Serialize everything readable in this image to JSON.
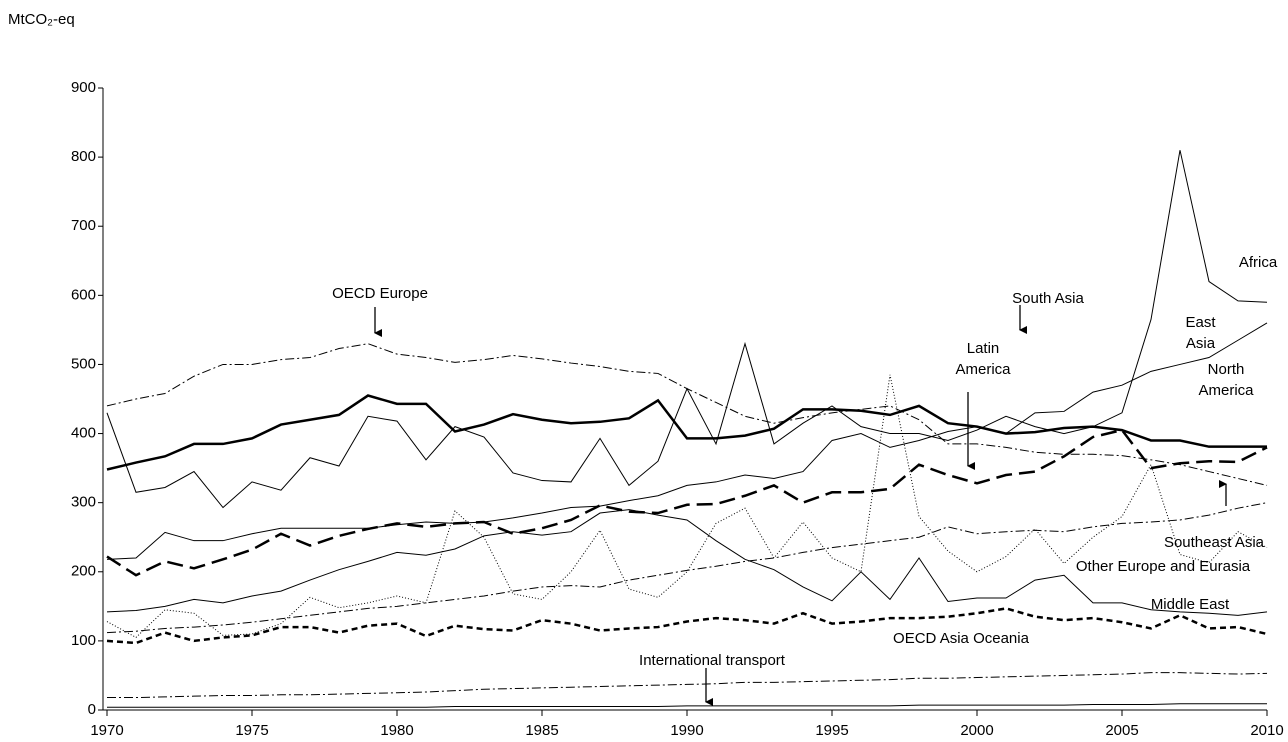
{
  "chart_data": {
    "type": "line",
    "ylabel": "MtCO₂-eq",
    "x": [
      1970,
      1971,
      1972,
      1973,
      1974,
      1975,
      1976,
      1977,
      1978,
      1979,
      1980,
      1981,
      1982,
      1983,
      1984,
      1985,
      1986,
      1987,
      1988,
      1989,
      1990,
      1991,
      1992,
      1993,
      1994,
      1995,
      1996,
      1997,
      1998,
      1999,
      2000,
      2001,
      2002,
      2003,
      2004,
      2005,
      2006,
      2007,
      2008,
      2009,
      2010
    ],
    "xlim": [
      1970,
      2010
    ],
    "xticks": [
      1970,
      1975,
      1980,
      1985,
      1990,
      1995,
      2000,
      2005,
      2010
    ],
    "ylim": [
      0,
      900
    ],
    "yticks": [
      0,
      100,
      200,
      300,
      400,
      500,
      600,
      700,
      800,
      900
    ],
    "series": [
      {
        "name": "OECD Europe",
        "color": "#000",
        "width": 1,
        "dash": "9,3,2,3",
        "values": [
          440,
          450,
          458,
          483,
          500,
          500,
          507,
          510,
          523,
          530,
          515,
          510,
          503,
          507,
          513,
          508,
          502,
          497,
          490,
          487,
          465,
          445,
          425,
          415,
          423,
          430,
          435,
          440,
          420,
          385,
          385,
          380,
          373,
          370,
          370,
          368,
          362,
          355,
          345,
          335,
          325
        ]
      },
      {
        "name": "North America",
        "color": "#000",
        "width": 2.5,
        "dash": "none",
        "values": [
          348,
          358,
          367,
          385,
          385,
          393,
          413,
          420,
          427,
          455,
          443,
          443,
          403,
          413,
          428,
          420,
          415,
          417,
          422,
          448,
          393,
          393,
          397,
          407,
          435,
          435,
          433,
          427,
          440,
          415,
          410,
          400,
          402,
          408,
          410,
          405,
          390,
          390,
          381,
          381,
          381
        ]
      },
      {
        "name": "Latin America",
        "color": "#000",
        "width": 2.5,
        "dash": "16,7",
        "values": [
          222,
          195,
          215,
          205,
          218,
          232,
          255,
          238,
          252,
          262,
          270,
          265,
          270,
          272,
          255,
          263,
          275,
          296,
          287,
          285,
          297,
          298,
          310,
          325,
          300,
          315,
          315,
          320,
          355,
          340,
          328,
          340,
          345,
          367,
          395,
          405,
          350,
          357,
          360,
          359,
          380
        ]
      },
      {
        "name": "East Asia",
        "color": "#000",
        "width": 1,
        "dash": "none",
        "values": [
          218,
          220,
          257,
          245,
          245,
          255,
          263,
          263,
          263,
          263,
          268,
          272,
          270,
          272,
          278,
          285,
          293,
          295,
          303,
          310,
          325,
          330,
          340,
          335,
          345,
          390,
          400,
          380,
          390,
          403,
          410,
          400,
          430,
          432,
          460,
          470,
          490,
          500,
          510,
          535,
          560
        ]
      },
      {
        "name": "Africa",
        "color": "#000",
        "width": 1,
        "dash": "none",
        "values": [
          430,
          315,
          322,
          345,
          293,
          330,
          318,
          365,
          353,
          425,
          418,
          362,
          410,
          395,
          343,
          332,
          330,
          393,
          325,
          360,
          465,
          385,
          530,
          385,
          415,
          440,
          410,
          400,
          400,
          390,
          405,
          425,
          410,
          400,
          410,
          430,
          565,
          810,
          620,
          592,
          590
        ]
      },
      {
        "name": "Other Europe and Eurasia",
        "color": "#000",
        "width": 1,
        "dash": "none",
        "values": [
          142,
          144,
          150,
          160,
          155,
          165,
          172,
          188,
          203,
          215,
          228,
          224,
          233,
          252,
          258,
          253,
          258,
          285,
          290,
          282,
          275,
          245,
          218,
          203,
          178,
          158,
          200,
          160,
          220,
          157,
          162,
          162,
          188,
          195,
          155,
          155,
          145,
          142,
          140,
          137,
          142
        ]
      },
      {
        "name": "Southeast Asia",
        "color": "#000",
        "width": 1,
        "dash": "1,2",
        "values": [
          128,
          105,
          145,
          140,
          108,
          110,
          125,
          163,
          148,
          155,
          165,
          155,
          288,
          250,
          168,
          160,
          200,
          260,
          175,
          163,
          200,
          270,
          292,
          220,
          272,
          220,
          200,
          485,
          280,
          230,
          200,
          222,
          262,
          212,
          250,
          280,
          355,
          225,
          213,
          258,
          235
        ]
      },
      {
        "name": "South Asia",
        "color": "#000",
        "width": 1,
        "dash": "9,3,2,3",
        "values": [
          112,
          114,
          118,
          120,
          123,
          127,
          132,
          137,
          142,
          147,
          150,
          155,
          160,
          165,
          172,
          178,
          180,
          178,
          188,
          195,
          202,
          208,
          215,
          220,
          228,
          235,
          240,
          245,
          250,
          265,
          255,
          258,
          260,
          258,
          265,
          270,
          272,
          275,
          282,
          292,
          300
        ]
      },
      {
        "name": "OECD Asia Oceania",
        "color": "#000",
        "width": 2.5,
        "dash": "6,4",
        "values": [
          100,
          97,
          112,
          100,
          105,
          108,
          120,
          120,
          112,
          122,
          125,
          107,
          122,
          117,
          115,
          130,
          125,
          115,
          118,
          120,
          128,
          133,
          130,
          125,
          140,
          125,
          128,
          133,
          133,
          135,
          140,
          147,
          135,
          130,
          133,
          127,
          118,
          137,
          118,
          120,
          110
        ]
      },
      {
        "name": "Middle East",
        "color": "#000",
        "width": 1,
        "dash": "9,3,2,3",
        "values": [
          18,
          18,
          19,
          20,
          21,
          21,
          22,
          22,
          23,
          24,
          25,
          26,
          28,
          30,
          31,
          32,
          33,
          34,
          35,
          36,
          37,
          38,
          40,
          40,
          41,
          42,
          43,
          44,
          46,
          46,
          47,
          48,
          49,
          50,
          51,
          52,
          54,
          54,
          53,
          52,
          53
        ]
      },
      {
        "name": "International transport",
        "color": "#000",
        "width": 1,
        "dash": "none",
        "values": [
          4,
          4,
          4,
          4,
          4,
          4,
          4,
          4,
          4,
          4,
          4,
          4,
          5,
          5,
          5,
          5,
          5,
          5,
          5,
          5,
          6,
          6,
          6,
          6,
          6,
          6,
          6,
          6,
          7,
          7,
          7,
          7,
          7,
          7,
          8,
          8,
          8,
          9,
          9,
          9,
          9
        ]
      }
    ]
  }
}
